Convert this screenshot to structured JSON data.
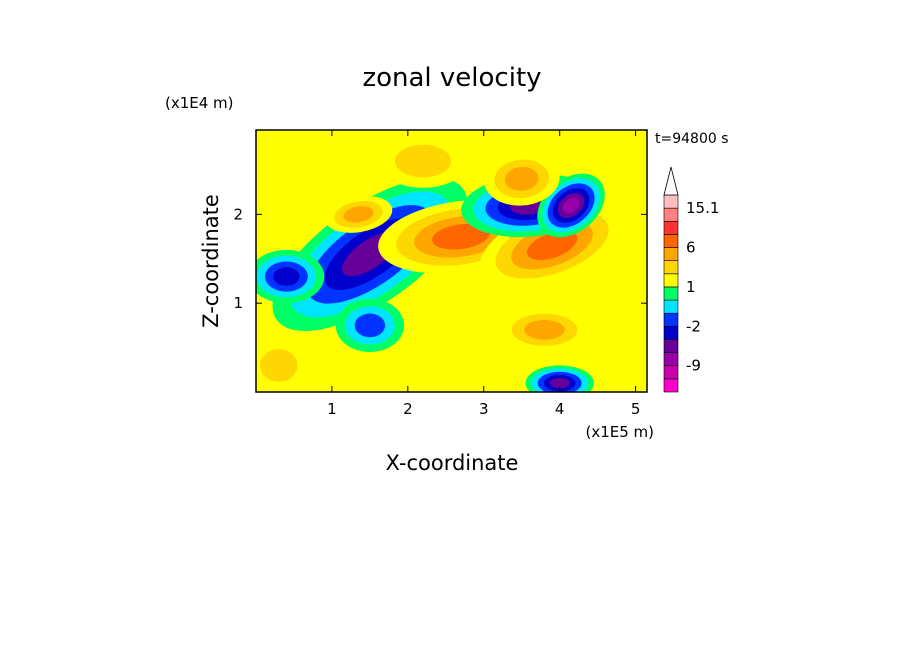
{
  "chart_data": {
    "type": "heatmap",
    "title": "zonal velocity",
    "xlabel": "X-coordinate",
    "ylabel": "Z-coordinate",
    "x_unit": "(x1E5 m)",
    "y_unit": "(x1E4 m)",
    "time_label": "t=94800 s",
    "xlim": [
      0,
      5.15
    ],
    "ylim": [
      0,
      2.95
    ],
    "x_ticks": [
      1,
      2,
      3,
      4,
      5
    ],
    "y_ticks": [
      1,
      2
    ],
    "colorbar": {
      "levels": [
        -15.1,
        -12,
        -9,
        -6,
        -4,
        -2,
        -1,
        0,
        1,
        2,
        4,
        6,
        9,
        12,
        15.1
      ],
      "colors": [
        "#ff00cc",
        "#cc00aa",
        "#9900aa",
        "#660099",
        "#0000cc",
        "#0033ff",
        "#00e5ff",
        "#00ff66",
        "#ffff00",
        "#ffd700",
        "#ffa500",
        "#ff6600",
        "#ff3333",
        "#ff8080",
        "#ffbfbf"
      ],
      "tick_labels": [
        "15.1",
        "6",
        "1",
        "-2",
        "-9"
      ],
      "tick_values": [
        15.1,
        6,
        1,
        -2,
        -9
      ],
      "extend_top": true
    },
    "features": [
      {
        "x": 1.5,
        "z": 1.55,
        "value": -6
      },
      {
        "x": 2.7,
        "z": 1.75,
        "value": 6
      },
      {
        "x": 3.9,
        "z": 1.65,
        "value": 6
      },
      {
        "x": 3.6,
        "z": 2.1,
        "value": -6
      },
      {
        "x": 4.15,
        "z": 2.1,
        "value": -9
      },
      {
        "x": 1.5,
        "z": 0.75,
        "value": -2
      },
      {
        "x": 3.8,
        "z": 0.7,
        "value": 4
      },
      {
        "x": 4.0,
        "z": 0.1,
        "value": -6
      },
      {
        "x": 1.35,
        "z": 2.0,
        "value": 4
      },
      {
        "x": 0.4,
        "z": 1.3,
        "value": -4
      },
      {
        "x": 3.5,
        "z": 2.4,
        "value": 4
      },
      {
        "x": 2.2,
        "z": 2.6,
        "value": 2
      },
      {
        "x": 2.6,
        "z": 0.2,
        "value": 1
      },
      {
        "x": 0.3,
        "z": 0.3,
        "value": 2
      }
    ]
  }
}
